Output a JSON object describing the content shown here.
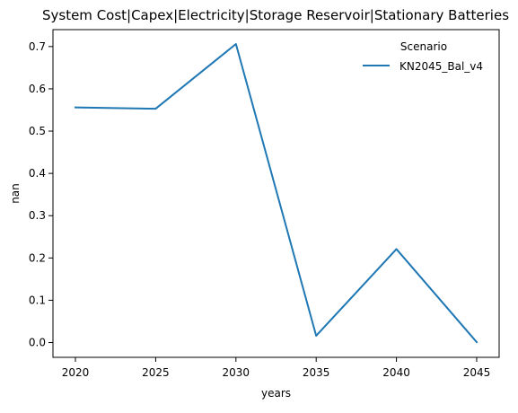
{
  "chart_data": {
    "type": "line",
    "title": "System Cost|Capex|Electricity|Storage Reservoir|Stationary Batteries",
    "xlabel": "years",
    "ylabel": "nan",
    "x": [
      2020,
      2025,
      2030,
      2035,
      2040,
      2045
    ],
    "xticks": [
      2020,
      2025,
      2030,
      2035,
      2040,
      2045
    ],
    "xlim": [
      2018.6,
      2046.4
    ],
    "ylim": [
      -0.035,
      0.74
    ],
    "yticks": [
      0.0,
      0.1,
      0.2,
      0.3,
      0.4,
      0.5,
      0.6,
      0.7
    ],
    "ytick_labels": [
      "0.0",
      "0.1",
      "0.2",
      "0.3",
      "0.4",
      "0.5",
      "0.6",
      "0.7"
    ],
    "grid": false,
    "legend": {
      "title": "Scenario",
      "placement": "top-right"
    },
    "series": [
      {
        "name": "KN2045_Bal_v4",
        "color": "#1f77b4",
        "values": [
          0.556,
          0.553,
          0.706,
          0.016,
          0.221,
          0.001
        ]
      }
    ]
  }
}
